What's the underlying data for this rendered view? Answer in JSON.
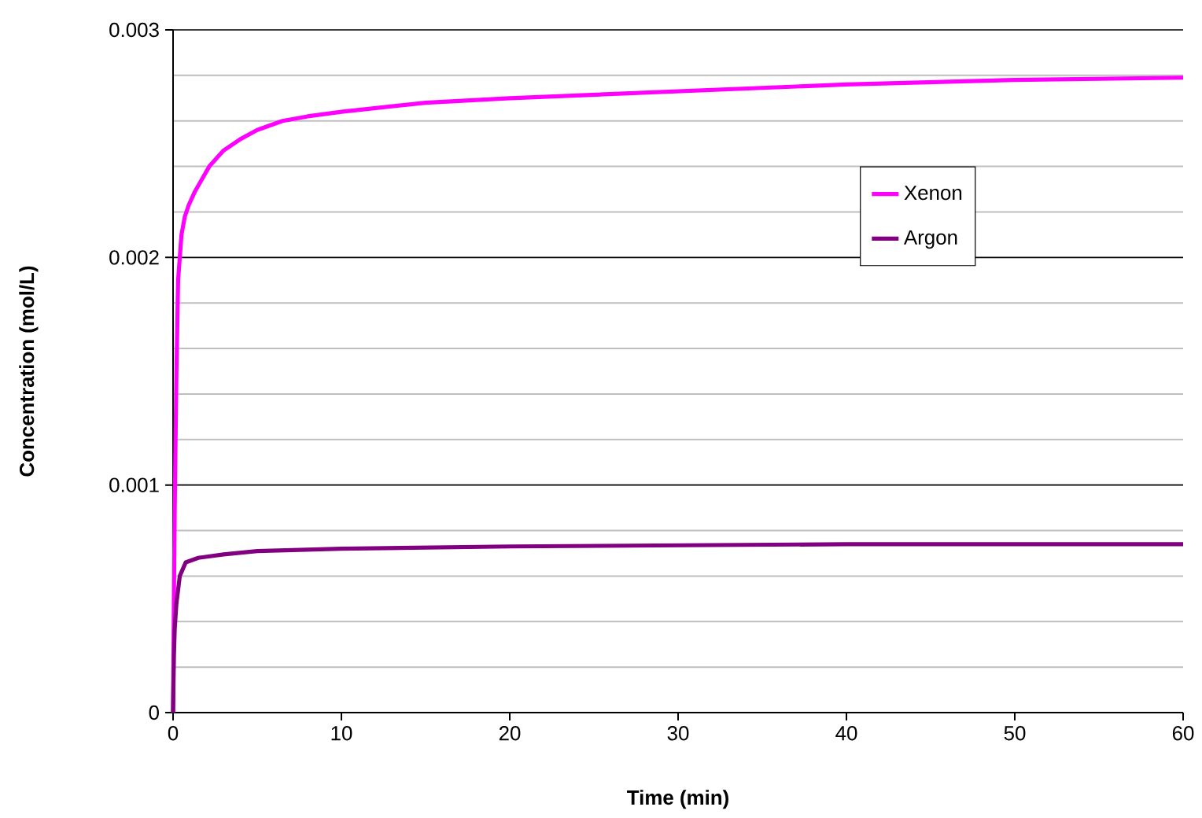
{
  "chart_data": {
    "type": "line",
    "xlabel": "Time (min)",
    "ylabel": "Concentration (mol/L)",
    "xlim": [
      0,
      60
    ],
    "xticks": [
      0,
      10,
      20,
      30,
      40,
      50,
      60
    ],
    "ylim": [
      0,
      0.003
    ],
    "yticks": [
      0,
      0.001,
      0.002,
      0.003
    ],
    "grid": "y",
    "legend": "top right",
    "marker": "none",
    "line_style": "solid",
    "series": [
      {
        "name": "Xenon",
        "color": "#ff00ff",
        "x": [
          0,
          0.05,
          0.1,
          0.2,
          0.3,
          0.5,
          0.7,
          0.93,
          1.3,
          2.15,
          3,
          4,
          5,
          6.5,
          8,
          10,
          15,
          20,
          30,
          40,
          50,
          60
        ],
        "values": [
          0,
          0.0005,
          0.0009,
          0.0015,
          0.0019,
          0.0021,
          0.00218,
          0.00223,
          0.00229,
          0.0024,
          0.00247,
          0.00252,
          0.00256,
          0.0026,
          0.00262,
          0.00264,
          0.00268,
          0.0027,
          0.00273,
          0.00276,
          0.00278,
          0.00279
        ]
      },
      {
        "name": "Argon",
        "color": "#800080",
        "x": [
          0,
          0.05,
          0.1,
          0.2,
          0.4,
          0.75,
          1.5,
          3,
          5,
          10,
          20,
          30,
          40,
          50,
          60
        ],
        "values": [
          0,
          0.00025,
          0.00037,
          0.00048,
          0.0006,
          0.00066,
          0.00068,
          0.000695,
          0.00071,
          0.00072,
          0.00073,
          0.000735,
          0.00074,
          0.00074,
          0.00074
        ]
      }
    ]
  }
}
